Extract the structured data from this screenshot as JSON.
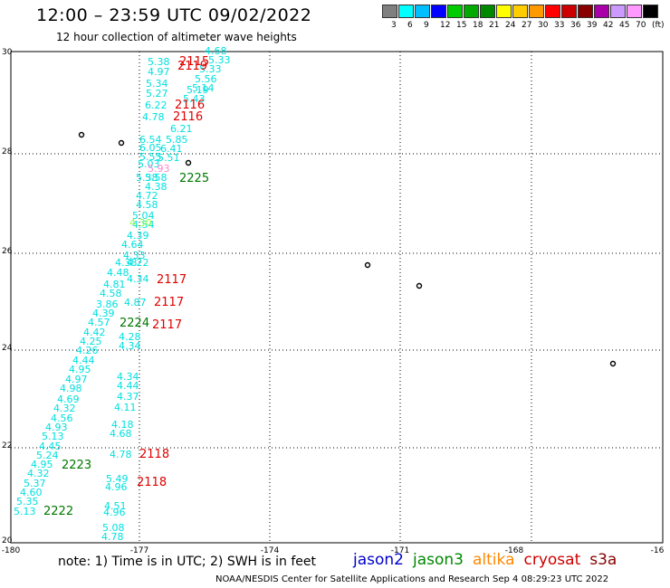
{
  "header": {
    "title": "12:00 – 23:59 UTC 09/02/2022",
    "subtitle": "12 hour collection of altimeter wave heights"
  },
  "color_scale": {
    "labels": [
      "3",
      "6",
      "9",
      "12",
      "15",
      "18",
      "21",
      "24",
      "27",
      "30",
      "33",
      "36",
      "39",
      "42",
      "45",
      "70",
      "(ft)"
    ],
    "colors": [
      "#7f7f7f",
      "#00ffff",
      "#00bfff",
      "#0000ff",
      "#00cc00",
      "#00aa00",
      "#008800",
      "#ffff00",
      "#ffcc00",
      "#ff9900",
      "#ff0000",
      "#cc0000",
      "#880000",
      "#aa00aa",
      "#cc99ff",
      "#ff99ff",
      "#000000"
    ]
  },
  "axes": {
    "x_ticks": [
      "-180",
      "-177",
      "-174",
      "-171",
      "-168",
      "-16"
    ],
    "y_ticks": [
      "20",
      "22",
      "24",
      "26",
      "28",
      "30"
    ]
  },
  "labels": {
    "wave_heights_cyan": [
      "4.68",
      "5.33",
      "5.38",
      "5.33",
      "4.97",
      "5.56",
      "5.14",
      "5.34",
      "5.19",
      "5.27",
      "5.43",
      "6.22",
      "4.78",
      "6.21",
      "6.54",
      "5.85",
      "6.05",
      "6.41",
      "5.55",
      "5.51",
      "5.03",
      "5.38",
      "5.58",
      "4.38",
      "4.72",
      "4.58",
      "5.04",
      "4.54",
      "4.39",
      "4.64",
      "4.33",
      "4.38",
      "4.22",
      "4.48",
      "4.34",
      "4.81",
      "4.58",
      "3.86",
      "4.87",
      "4.39",
      "4.57",
      "4.42",
      "4.28",
      "4.25",
      "4.34",
      "4.26",
      "4.44",
      "4.95",
      "4.97",
      "4.98",
      "4.69",
      "4.32",
      "4.56",
      "4.93",
      "5.13",
      "4.45",
      "5.24",
      "4.95",
      "4.32",
      "5.37",
      "4.60",
      "5.35",
      "5.13",
      "4.34",
      "4.44",
      "4.37",
      "4.11",
      "4.18",
      "4.68",
      "4.78",
      "5.49",
      "4.96",
      "4.51",
      "4.96",
      "5.08",
      "4.78"
    ],
    "wave_heights_pink": [
      "5.93"
    ],
    "wave_heights_green": [
      "4.30"
    ],
    "times_red": [
      "2115",
      "2119",
      "2116",
      "2116",
      "2117",
      "2117",
      "2117",
      "2118",
      "2118"
    ],
    "times_green": [
      "2225",
      "2224",
      "2223",
      "2222"
    ]
  },
  "legend": {
    "note": "note:  1) Time is in UTC;  2) SWH is in feet",
    "satellites": [
      {
        "name": "jason2",
        "color": "#0000cc"
      },
      {
        "name": "jason3",
        "color": "#008800"
      },
      {
        "name": "altika",
        "color": "#ff8800"
      },
      {
        "name": "cryosat",
        "color": "#cc0000"
      },
      {
        "name": "s3a",
        "color": "#880000"
      }
    ]
  },
  "credit": "NOAA/NESDIS Center for Satellite Applications and Research    Sep  4 08:29:23 UTC 2022"
}
